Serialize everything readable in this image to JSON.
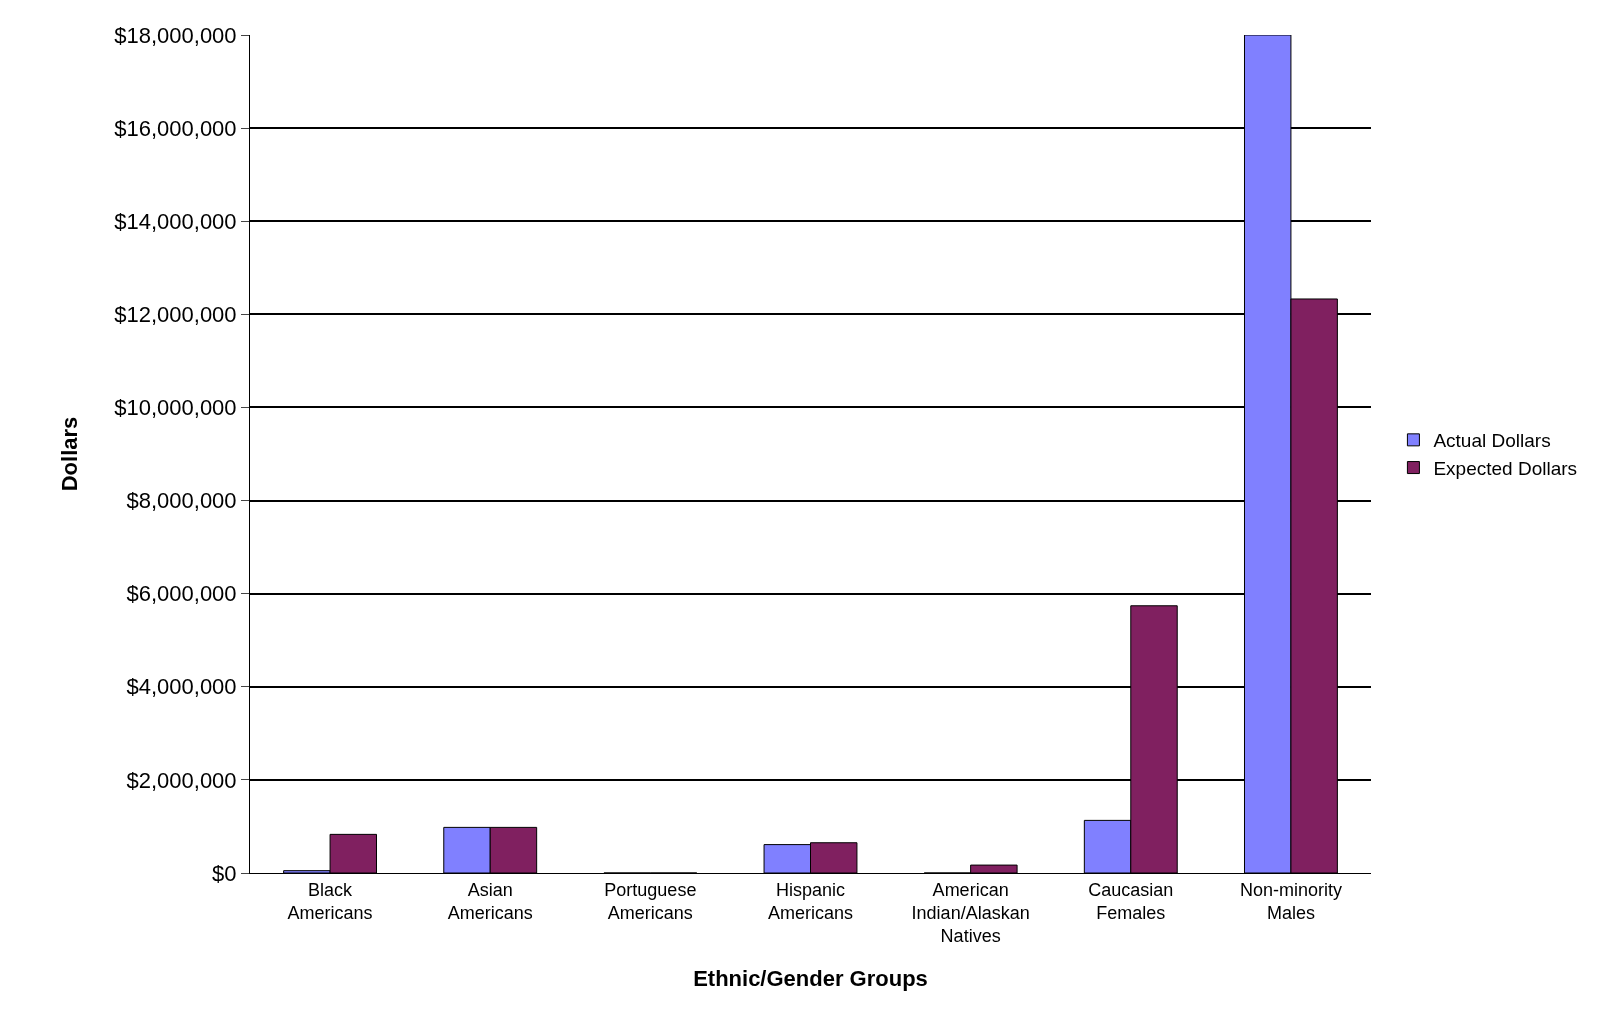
{
  "chart_data": {
    "type": "bar",
    "xlabel": "Ethnic/Gender Groups",
    "ylabel": "Dollars",
    "categories": [
      "Black Americans",
      "Asian Americans",
      "Portuguese Americans",
      "Hispanic Americans",
      "American Indian/Alaskan Natives",
      "Caucasian Females",
      "Non-minority Males"
    ],
    "series": [
      {
        "name": "Actual Dollars",
        "color": "#8080ff",
        "values": [
          50000,
          980000,
          0,
          610000,
          0,
          1130000,
          18000000
        ]
      },
      {
        "name": "Expected Dollars",
        "color": "#802060",
        "values": [
          830000,
          980000,
          0,
          650000,
          170000,
          5740000,
          12330000
        ]
      }
    ],
    "ylim": [
      0,
      18000000
    ],
    "yticks": [
      {
        "value": 0,
        "label": "$0"
      },
      {
        "value": 2000000,
        "label": "$2,000,000"
      },
      {
        "value": 4000000,
        "label": "$4,000,000"
      },
      {
        "value": 6000000,
        "label": "$6,000,000"
      },
      {
        "value": 8000000,
        "label": "$8,000,000"
      },
      {
        "value": 10000000,
        "label": "$10,000,000"
      },
      {
        "value": 12000000,
        "label": "$12,000,000"
      },
      {
        "value": 14000000,
        "label": "$14,000,000"
      },
      {
        "value": 16000000,
        "label": "$16,000,000"
      },
      {
        "value": 18000000,
        "label": "$18,000,000"
      }
    ],
    "grid": "y",
    "legend": "right"
  }
}
